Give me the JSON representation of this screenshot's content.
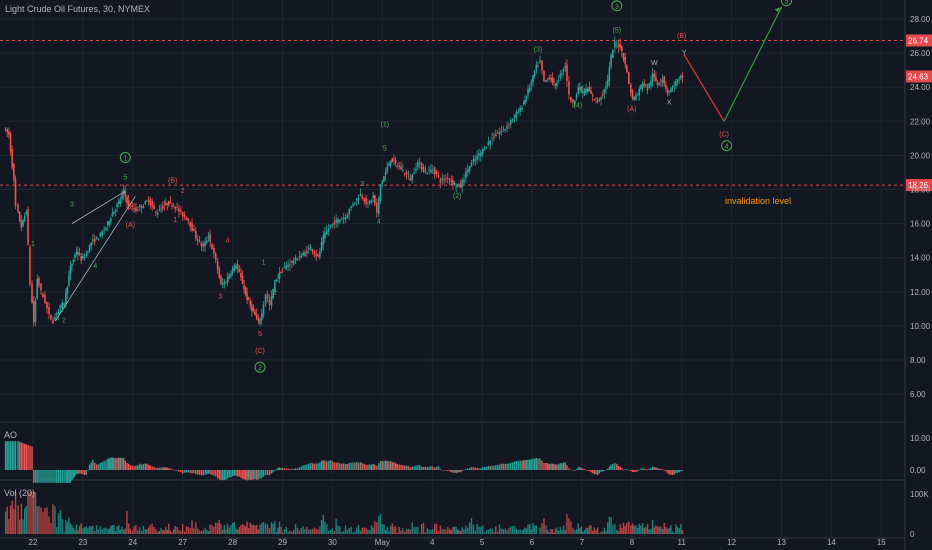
{
  "header": {
    "title": "Light Crude Oil Futures, 30, NYMEX"
  },
  "panes": {
    "ao_label": "AO",
    "vol_label": "Vol (20)"
  },
  "colors": {
    "background": "#131722",
    "up": "#26a69a",
    "down": "#ef5350",
    "grid": "#1f2430",
    "text": "#b2b5be",
    "level_line": "#e5484d",
    "green_label": "#4caf50",
    "red_label": "#ef5350",
    "orange_text": "#ff9800"
  },
  "price_axis": {
    "min": 5.0,
    "max": 29.0,
    "ticks": [
      "28.00",
      "26.00",
      "24.00",
      "22.00",
      "20.00",
      "18.00",
      "16.00",
      "14.00",
      "12.00",
      "10.00",
      "8.00",
      "6.00"
    ],
    "tick_values": [
      28,
      26,
      24,
      22,
      20,
      18,
      16,
      14,
      12,
      10,
      8,
      6
    ]
  },
  "ao_axis": {
    "ticks": [
      "10.00",
      "0.00"
    ],
    "tick_values": [
      10,
      0
    ],
    "min": -6,
    "max": 14
  },
  "vol_axis": {
    "ticks": [
      "100K",
      "0"
    ],
    "tick_values": [
      100,
      0
    ],
    "min": 0,
    "max": 130
  },
  "time_axis": {
    "labels": [
      "22",
      "23",
      "24",
      "27",
      "28",
      "29",
      "30",
      "May",
      "4",
      "5",
      "6",
      "7",
      "8",
      "11",
      "12",
      "13",
      "14",
      "15"
    ],
    "positions": [
      0,
      1,
      2,
      3,
      4,
      5,
      6,
      7,
      8,
      9,
      10,
      11,
      12,
      13,
      14,
      15,
      16,
      17
    ]
  },
  "levels": [
    {
      "value": 26.74,
      "label": "26.74"
    },
    {
      "value": 18.26,
      "label": "18.26"
    }
  ],
  "last_price": {
    "value": 24.63,
    "label": "24.63"
  },
  "annotation_text": {
    "invalidation": "invalidation level"
  },
  "chart_data": {
    "type": "candlestick",
    "title": "Light Crude Oil Futures, 30, NYMEX",
    "x_unit": "trading-day index (0 = Apr 22)",
    "price_path": [
      [
        -0.55,
        21.6
      ],
      [
        -0.45,
        21.2
      ],
      [
        -0.35,
        18.5
      ],
      [
        -0.3,
        17.0
      ],
      [
        -0.2,
        15.8
      ],
      [
        -0.1,
        16.8
      ],
      [
        -0.02,
        12.5
      ],
      [
        0.05,
        10.2
      ],
      [
        0.12,
        12.8
      ],
      [
        0.2,
        12.0
      ],
      [
        0.28,
        11.4
      ],
      [
        0.36,
        10.6
      ],
      [
        0.44,
        10.3
      ],
      [
        0.55,
        11.0
      ],
      [
        0.66,
        11.4
      ],
      [
        0.78,
        13.4
      ],
      [
        0.9,
        14.4
      ],
      [
        1.0,
        13.9
      ],
      [
        1.1,
        14.2
      ],
      [
        1.2,
        14.9
      ],
      [
        1.35,
        15.2
      ],
      [
        1.5,
        15.8
      ],
      [
        1.62,
        16.6
      ],
      [
        1.75,
        17.2
      ],
      [
        1.85,
        17.9
      ],
      [
        1.95,
        17.0
      ],
      [
        2.1,
        16.8
      ],
      [
        2.25,
        17.1
      ],
      [
        2.35,
        17.4
      ],
      [
        2.5,
        16.6
      ],
      [
        2.6,
        16.9
      ],
      [
        2.72,
        17.2
      ],
      [
        2.85,
        17.1
      ],
      [
        3.0,
        16.6
      ],
      [
        3.15,
        16.2
      ],
      [
        3.3,
        15.2
      ],
      [
        3.45,
        14.6
      ],
      [
        3.55,
        15.3
      ],
      [
        3.7,
        13.8
      ],
      [
        3.8,
        12.4
      ],
      [
        3.9,
        12.6
      ],
      [
        4.0,
        13.2
      ],
      [
        4.1,
        13.6
      ],
      [
        4.2,
        12.8
      ],
      [
        4.32,
        11.6
      ],
      [
        4.45,
        10.8
      ],
      [
        4.55,
        10.2
      ],
      [
        4.62,
        10.7
      ],
      [
        4.7,
        11.9
      ],
      [
        4.78,
        11.2
      ],
      [
        4.88,
        12.6
      ],
      [
        5.0,
        13.2
      ],
      [
        5.15,
        13.6
      ],
      [
        5.3,
        13.9
      ],
      [
        5.45,
        14.2
      ],
      [
        5.6,
        14.6
      ],
      [
        5.75,
        14.0
      ],
      [
        5.85,
        15.2
      ],
      [
        6.0,
        15.9
      ],
      [
        6.15,
        16.2
      ],
      [
        6.3,
        16.4
      ],
      [
        6.45,
        17.2
      ],
      [
        6.6,
        17.7
      ],
      [
        6.75,
        17.1
      ],
      [
        6.85,
        17.6
      ],
      [
        6.93,
        16.6
      ],
      [
        7.0,
        18.3
      ],
      [
        7.1,
        19.0
      ],
      [
        7.2,
        19.8
      ],
      [
        7.3,
        19.5
      ],
      [
        7.45,
        19.1
      ],
      [
        7.6,
        18.6
      ],
      [
        7.75,
        19.6
      ],
      [
        7.9,
        19.0
      ],
      [
        8.05,
        19.2
      ],
      [
        8.2,
        18.5
      ],
      [
        8.35,
        18.7
      ],
      [
        8.48,
        18.3
      ],
      [
        8.6,
        18.2
      ],
      [
        8.75,
        19.2
      ],
      [
        8.9,
        19.8
      ],
      [
        9.05,
        20.3
      ],
      [
        9.2,
        20.9
      ],
      [
        9.35,
        21.3
      ],
      [
        9.5,
        21.6
      ],
      [
        9.65,
        22.2
      ],
      [
        9.8,
        22.7
      ],
      [
        9.92,
        23.5
      ],
      [
        10.02,
        24.3
      ],
      [
        10.12,
        25.2
      ],
      [
        10.2,
        25.5
      ],
      [
        10.28,
        24.3
      ],
      [
        10.38,
        24.6
      ],
      [
        10.5,
        24.1
      ],
      [
        10.6,
        24.7
      ],
      [
        10.7,
        25.3
      ],
      [
        10.78,
        23.5
      ],
      [
        10.86,
        23.0
      ],
      [
        10.96,
        24.0
      ],
      [
        11.05,
        23.7
      ],
      [
        11.15,
        23.9
      ],
      [
        11.25,
        23.4
      ],
      [
        11.35,
        23.2
      ],
      [
        11.45,
        23.6
      ],
      [
        11.55,
        24.4
      ],
      [
        11.62,
        25.8
      ],
      [
        11.7,
        26.6
      ],
      [
        11.8,
        26.4
      ],
      [
        11.9,
        25.4
      ],
      [
        11.98,
        24.2
      ],
      [
        12.05,
        23.3
      ],
      [
        12.15,
        23.6
      ],
      [
        12.25,
        24.3
      ],
      [
        12.35,
        23.9
      ],
      [
        12.45,
        24.7
      ],
      [
        12.55,
        24.2
      ],
      [
        12.65,
        24.5
      ],
      [
        12.75,
        23.7
      ],
      [
        12.85,
        24.0
      ],
      [
        12.95,
        24.4
      ],
      [
        13.05,
        24.63
      ]
    ],
    "projection": {
      "b_point": [
        13.05,
        25.9
      ],
      "c_point": [
        13.85,
        22.0
      ],
      "target_point": [
        15.0,
        28.7
      ]
    },
    "wedge": {
      "lower": [
        [
          0.45,
          10.3
        ],
        [
          2.05,
          17.6
        ]
      ],
      "upper": [
        [
          0.78,
          16.0
        ],
        [
          1.85,
          17.9
        ]
      ]
    },
    "wave_labels": [
      {
        "text": "1",
        "x": 0.0,
        "p": 14.7,
        "color": "green"
      },
      {
        "text": "2",
        "x": 0.62,
        "p": 10.2,
        "color": "green"
      },
      {
        "text": "3",
        "x": 0.78,
        "p": 17.0,
        "color": "green"
      },
      {
        "text": "4",
        "x": 1.25,
        "p": 13.4,
        "color": "green"
      },
      {
        "text": "5",
        "x": 1.85,
        "p": 18.6,
        "color": "green"
      },
      {
        "text": "1",
        "x": 1.85,
        "p": 19.7,
        "color": "green",
        "circled": true
      },
      {
        "text": "(A)",
        "x": 1.95,
        "p": 15.8,
        "color": "red"
      },
      {
        "text": "(B)",
        "x": 2.8,
        "p": 18.4,
        "color": "red"
      },
      {
        "text": "2",
        "x": 3.0,
        "p": 17.8,
        "color": "red"
      },
      {
        "text": "1",
        "x": 2.85,
        "p": 16.1,
        "color": "red"
      },
      {
        "text": "4",
        "x": 3.9,
        "p": 14.9,
        "color": "red"
      },
      {
        "text": "3",
        "x": 3.75,
        "p": 11.6,
        "color": "red"
      },
      {
        "text": "5",
        "x": 4.55,
        "p": 9.4,
        "color": "red"
      },
      {
        "text": "(C)",
        "x": 4.55,
        "p": 8.4,
        "color": "red"
      },
      {
        "text": "2",
        "x": 4.55,
        "p": 7.4,
        "color": "green",
        "circled": true
      },
      {
        "text": "1",
        "x": 4.62,
        "p": 13.6,
        "color": "green"
      },
      {
        "text": "2",
        "x": 4.85,
        "p": 11.8,
        "color": "green"
      },
      {
        "text": "3",
        "x": 6.6,
        "p": 18.2,
        "color": "green"
      },
      {
        "text": "4",
        "x": 6.93,
        "p": 16.0,
        "color": "green"
      },
      {
        "text": "5",
        "x": 7.05,
        "p": 20.3,
        "color": "green"
      },
      {
        "text": "(1)",
        "x": 7.05,
        "p": 21.7,
        "color": "green"
      },
      {
        "text": "(2)",
        "x": 8.5,
        "p": 17.5,
        "color": "green"
      },
      {
        "text": "(3)",
        "x": 10.12,
        "p": 26.1,
        "color": "green"
      },
      {
        "text": "(4)",
        "x": 10.92,
        "p": 22.8,
        "color": "green"
      },
      {
        "text": "(5)",
        "x": 11.7,
        "p": 27.2,
        "color": "green"
      },
      {
        "text": "3",
        "x": 11.7,
        "p": 28.6,
        "color": "green",
        "circled": true
      },
      {
        "text": "(A)",
        "x": 12.0,
        "p": 22.6,
        "color": "red"
      },
      {
        "text": "W",
        "x": 12.45,
        "p": 25.3,
        "color": "text"
      },
      {
        "text": "X",
        "x": 12.75,
        "p": 23.0,
        "color": "text"
      },
      {
        "text": "Y",
        "x": 13.05,
        "p": 25.9,
        "color": "text"
      },
      {
        "text": "(B)",
        "x": 13.0,
        "p": 26.9,
        "color": "red"
      },
      {
        "text": "(C)",
        "x": 13.85,
        "p": 21.1,
        "color": "red"
      },
      {
        "text": "4",
        "x": 13.9,
        "p": 20.4,
        "color": "green",
        "circled": true
      },
      {
        "text": "5",
        "x": 15.1,
        "p": 28.9,
        "color": "green",
        "circled": true
      }
    ]
  }
}
